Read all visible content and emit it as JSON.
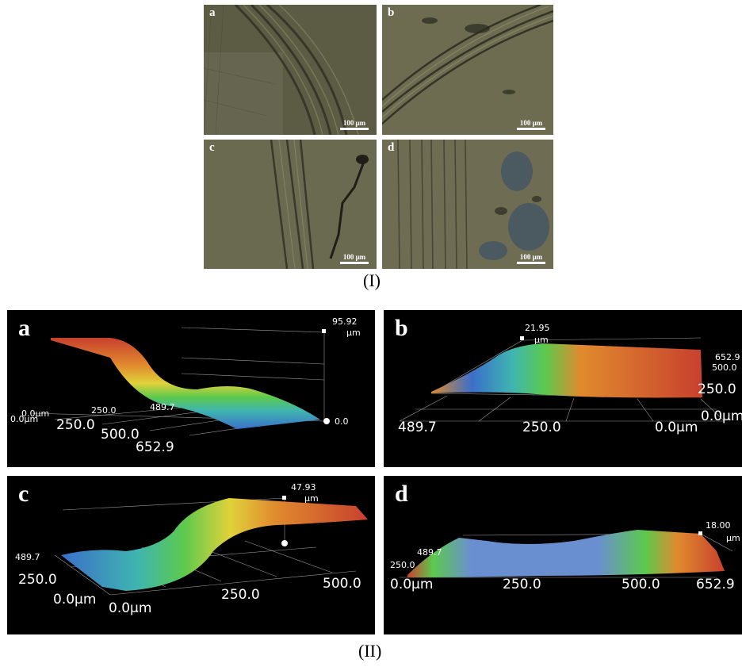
{
  "part_one": {
    "label": "(I)",
    "panels": [
      {
        "letter": "a",
        "scale_bar": "100 μm"
      },
      {
        "letter": "b",
        "scale_bar": "100 μm"
      },
      {
        "letter": "c",
        "scale_bar": "100 μm"
      },
      {
        "letter": "d",
        "scale_bar": "100 μm"
      }
    ]
  },
  "part_two": {
    "label": "(II)",
    "panels": [
      {
        "letter": "a",
        "height_max": "95.92",
        "height_unit": "μm",
        "height_min": "0.0",
        "axis_ticks": [
          "0.0μm",
          "0.0μm",
          "250.0",
          "500.0",
          "652.9",
          "250.0",
          "489.7"
        ]
      },
      {
        "letter": "b",
        "height_max": "21.95",
        "height_unit": "μm",
        "axis_ticks": [
          "489.7",
          "250.0",
          "0.0μm",
          "0.0μm",
          "250.0",
          "500.0",
          "652.9"
        ]
      },
      {
        "letter": "c",
        "height_max": "47.93",
        "height_unit": "μm",
        "axis_ticks": [
          "489.7",
          "250.0",
          "0.0μm",
          "0.0μm",
          "250.0",
          "500.0"
        ]
      },
      {
        "letter": "d",
        "height_max": "18.00",
        "height_unit": "μm",
        "axis_ticks": [
          "489.7",
          "250.0",
          "0.0μm",
          "250.0",
          "500.0",
          "652.9"
        ]
      }
    ]
  },
  "colors": {
    "height_map": [
      "#3b6fc9",
      "#3fb5b0",
      "#5cc94d",
      "#e0d23a",
      "#e08a2e",
      "#c8402e"
    ]
  }
}
